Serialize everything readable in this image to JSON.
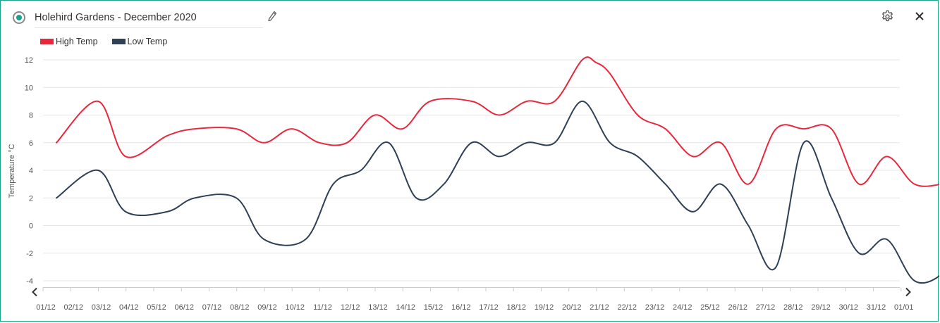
{
  "header": {
    "title": "Holehird Gardens - December 2020"
  },
  "icons": {
    "status": "radio-status-icon",
    "edit": "pencil-icon",
    "settings": "gear-icon",
    "close": "close-icon",
    "prev": "chevron-left-icon",
    "next": "chevron-right-icon"
  },
  "colors": {
    "accent": "#1aa38a",
    "high": "#e8283c",
    "low": "#2f3f55",
    "grid": "#e6e6e6",
    "tick_text": "#555555"
  },
  "chart_data": {
    "type": "line",
    "title": "",
    "xlabel": "",
    "ylabel": "Temperature °C",
    "ylim": [
      -4,
      12
    ],
    "yticks": [
      12,
      10,
      8,
      6,
      4,
      2,
      0,
      -2,
      -4
    ],
    "grid": true,
    "legend_position": "top-left",
    "categories": [
      "01/12",
      "02/12",
      "03/12",
      "04/12",
      "05/12",
      "06/12",
      "07/12",
      "08/12",
      "09/12",
      "10/12",
      "11/12",
      "12/12",
      "13/12",
      "14/12",
      "15/12",
      "16/12",
      "17/12",
      "18/12",
      "19/12",
      "20/12",
      "21/12",
      "22/12",
      "23/12",
      "24/12",
      "25/12",
      "26/12",
      "27/12",
      "28/12",
      "29/12",
      "30/12",
      "31/12",
      "01/01"
    ],
    "series": [
      {
        "name": "High Temp",
        "color": "#e8283c",
        "points": [
          [
            0,
            6
          ],
          [
            1.5,
            9
          ],
          [
            2.5,
            5
          ],
          [
            4,
            6.5
          ],
          [
            5,
            7
          ],
          [
            6.5,
            7
          ],
          [
            7.5,
            6
          ],
          [
            8.5,
            7
          ],
          [
            9.5,
            6
          ],
          [
            10.5,
            6
          ],
          [
            11.5,
            8
          ],
          [
            12.5,
            7
          ],
          [
            13.5,
            9
          ],
          [
            15,
            9
          ],
          [
            16,
            8
          ],
          [
            17,
            9
          ],
          [
            18,
            9
          ],
          [
            19,
            12
          ],
          [
            19.5,
            11.8
          ],
          [
            20,
            11
          ],
          [
            21,
            8
          ],
          [
            22,
            7
          ],
          [
            23,
            5
          ],
          [
            24,
            6
          ],
          [
            25,
            3
          ],
          [
            26,
            7
          ],
          [
            27,
            7
          ],
          [
            28,
            7
          ],
          [
            29,
            3
          ],
          [
            30,
            5
          ],
          [
            31,
            3
          ],
          [
            32,
            3
          ],
          [
            32.5,
            3.3
          ]
        ]
      },
      {
        "name": "Low Temp",
        "color": "#2f3f55",
        "points": [
          [
            0,
            2
          ],
          [
            1.5,
            4
          ],
          [
            2.5,
            1
          ],
          [
            4,
            1
          ],
          [
            5,
            2
          ],
          [
            6.5,
            2
          ],
          [
            7.5,
            -1
          ],
          [
            9,
            -1
          ],
          [
            10,
            3
          ],
          [
            11,
            4
          ],
          [
            12,
            6
          ],
          [
            13,
            2
          ],
          [
            14,
            3
          ],
          [
            15,
            6
          ],
          [
            16,
            5
          ],
          [
            17,
            6
          ],
          [
            18,
            6
          ],
          [
            19,
            9
          ],
          [
            20,
            6
          ],
          [
            21,
            5
          ],
          [
            22,
            3
          ],
          [
            23,
            1
          ],
          [
            24,
            3
          ],
          [
            25,
            0
          ],
          [
            26,
            -3
          ],
          [
            27,
            6
          ],
          [
            28,
            2
          ],
          [
            29,
            -2
          ],
          [
            30,
            -1
          ],
          [
            31,
            -4
          ],
          [
            32,
            -3.5
          ],
          [
            32.5,
            -1.6
          ]
        ]
      }
    ]
  }
}
